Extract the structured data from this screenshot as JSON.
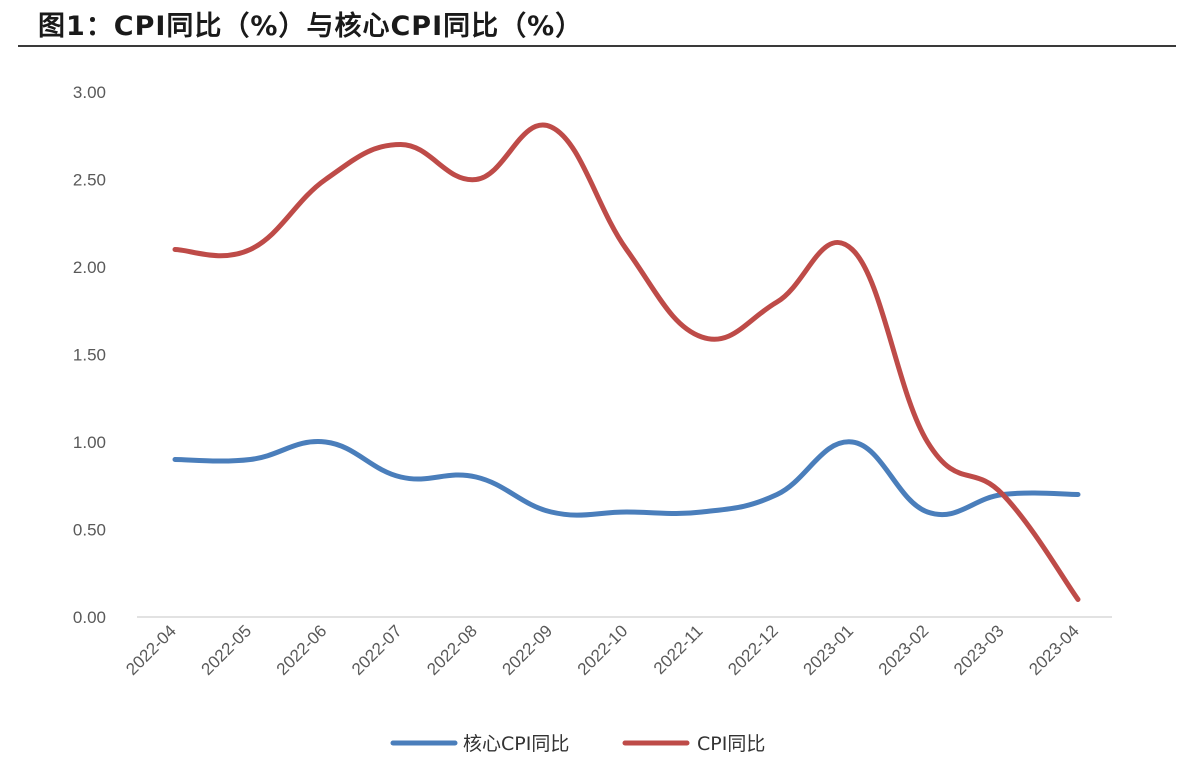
{
  "title": "图1：CPI同比（%）与核心CPI同比（%）",
  "colors": {
    "core": "#4a7ebb",
    "cpi": "#be4b48"
  },
  "chart_data": {
    "type": "line",
    "title": "图1：CPI同比（%）与核心CPI同比（%）",
    "x": [
      "2022-04",
      "2022-05",
      "2022-06",
      "2022-07",
      "2022-08",
      "2022-09",
      "2022-10",
      "2022-11",
      "2022-12",
      "2023-01",
      "2023-02",
      "2023-03",
      "2023-04"
    ],
    "ylim": [
      0,
      3
    ],
    "yticks": [
      "0.00",
      "0.50",
      "1.00",
      "1.50",
      "2.00",
      "2.50",
      "3.00"
    ],
    "grid": false,
    "legend": "bottom",
    "series": [
      {
        "name": "核心CPI同比",
        "color": "#4a7ebb",
        "values": [
          0.9,
          0.9,
          1.0,
          0.8,
          0.8,
          0.6,
          0.6,
          0.6,
          0.7,
          1.0,
          0.6,
          0.7,
          0.7
        ]
      },
      {
        "name": "CPI同比",
        "color": "#be4b48",
        "values": [
          2.1,
          2.1,
          2.5,
          2.7,
          2.5,
          2.8,
          2.1,
          1.6,
          1.8,
          2.1,
          1.0,
          0.7,
          0.1
        ]
      }
    ]
  }
}
